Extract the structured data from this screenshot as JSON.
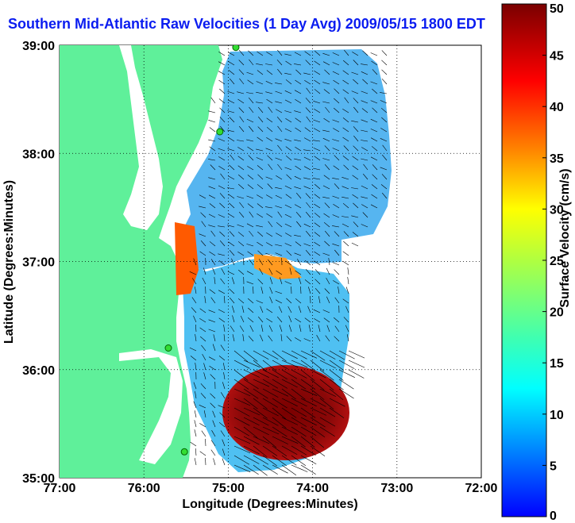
{
  "chart_data": {
    "type": "heatmap",
    "title": "Southern Mid-Atlantic Raw Velocities (1 Day Avg) 2009/05/15 1800 EDT",
    "xlabel": "Longitude (Degrees:Minutes)",
    "ylabel": "Latitude (Degrees:Minutes)",
    "x_ticks": [
      "77:00",
      "76:00",
      "75:00",
      "74:00",
      "73:00",
      "72:00"
    ],
    "y_ticks": [
      "39:00",
      "38:00",
      "37:00",
      "36:00",
      "35:00"
    ],
    "xlim": [
      -77,
      -72
    ],
    "ylim": [
      35,
      39
    ],
    "grid": true,
    "colorbar": {
      "label": "Surface Velocity (cm/s)",
      "ticks": [
        0,
        5,
        10,
        15,
        20,
        25,
        30,
        35,
        40,
        45,
        50
      ],
      "range": [
        0,
        50
      ],
      "colormap": "jet"
    },
    "stations": [
      {
        "lon": -74.91,
        "lat": 38.98
      },
      {
        "lon": -75.1,
        "lat": 38.2
      },
      {
        "lon": -75.71,
        "lat": 36.2
      },
      {
        "lon": -75.52,
        "lat": 35.24
      }
    ],
    "colors": {
      "land": "#5ff09a",
      "title": "#0a1cf0"
    }
  }
}
